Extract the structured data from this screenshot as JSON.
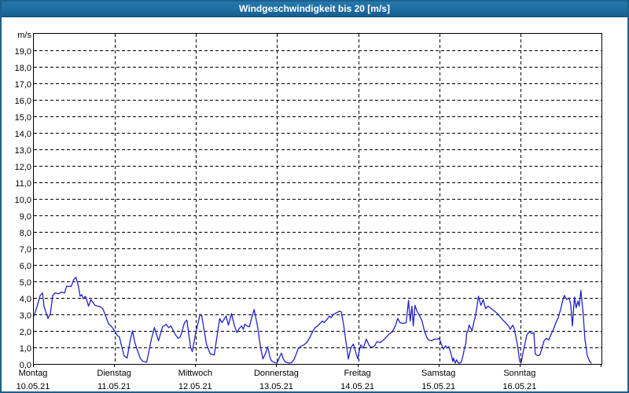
{
  "window": {
    "title": "Windgeschwindigkeit bis 20 [m/s]"
  },
  "colors": {
    "titlebar_blue": "#1e6da1",
    "outer_border_blue": "#1d5f8f",
    "line_blue": "#2222c8",
    "grid_black": "#000000",
    "background": "#ffffff",
    "title_text": "#ffffff",
    "label_text": "#000000"
  },
  "chart_data": {
    "type": "line",
    "title": "Windgeschwindigkeit bis 20 [m/s]",
    "ylabel_unit": "m/s",
    "ylim": [
      0,
      20
    ],
    "ytick_step": 1.0,
    "ytick_labels_top_to_bottom": [
      "19,0",
      "18,0",
      "17,0",
      "16,0",
      "15,0",
      "14,0",
      "13,0",
      "12,0",
      "11,0",
      "10,0",
      "9,0",
      "8,0",
      "7,0",
      "6,0",
      "5,0",
      "4,0",
      "3,0",
      "2,0",
      "1,0",
      "0,0"
    ],
    "xlim_hours": [
      0,
      168
    ],
    "grid": "dashed-black, 1 m/s horizontal steps, vertical lines at day boundaries",
    "legend": "none",
    "days": [
      {
        "name": "Montag",
        "date": "10.05.21"
      },
      {
        "name": "Dienstag",
        "date": "11.05.21"
      },
      {
        "name": "Mittwoch",
        "date": "12.05.21"
      },
      {
        "name": "Donnerstag",
        "date": "13.05.21"
      },
      {
        "name": "Freitag",
        "date": "14.05.21"
      },
      {
        "name": "Samstag",
        "date": "15.05.21"
      },
      {
        "name": "Sonntag",
        "date": "16.05.21"
      }
    ],
    "series": [
      {
        "name": "Windgeschwindigkeit",
        "unit": "m/s",
        "color": "#2222c8",
        "points_hours_value": [
          [
            0,
            2.9
          ],
          [
            0.7,
            3.3
          ],
          [
            1.9,
            4.15
          ],
          [
            2.6,
            4.3
          ],
          [
            3,
            3.5
          ],
          [
            3.7,
            3.05
          ],
          [
            4.2,
            2.75
          ],
          [
            4.9,
            3.05
          ],
          [
            5.6,
            4.15
          ],
          [
            6.3,
            4.3
          ],
          [
            7.4,
            4.25
          ],
          [
            8.1,
            4.35
          ],
          [
            9.1,
            4.3
          ],
          [
            9.7,
            4.7
          ],
          [
            11.1,
            4.7
          ],
          [
            11.8,
            5.1
          ],
          [
            12.5,
            5.25
          ],
          [
            13.2,
            4.7
          ],
          [
            13.7,
            4.1
          ],
          [
            14.2,
            4.2
          ],
          [
            14.6,
            3.95
          ],
          [
            15.3,
            4.1
          ],
          [
            16.2,
            3.5
          ],
          [
            16.9,
            3.9
          ],
          [
            18.1,
            3.55
          ],
          [
            19,
            3.5
          ],
          [
            19.7,
            3.45
          ],
          [
            20.4,
            3.35
          ],
          [
            21.1,
            3
          ],
          [
            21.8,
            2.6
          ],
          [
            22.2,
            2.4
          ],
          [
            22.9,
            2.3
          ],
          [
            23.9,
            2
          ],
          [
            24.8,
            1.7
          ],
          [
            25.3,
            1.65
          ],
          [
            26.7,
            0.5
          ],
          [
            27.6,
            0.35
          ],
          [
            28.5,
            1.4
          ],
          [
            29.2,
            2
          ],
          [
            29.9,
            1.3
          ],
          [
            30.6,
            0.85
          ],
          [
            31.6,
            0.3
          ],
          [
            32.3,
            0.15
          ],
          [
            33.4,
            0.1
          ],
          [
            34.8,
            1.5
          ],
          [
            35.7,
            2.2
          ],
          [
            36.9,
            1.4
          ],
          [
            38.1,
            2.25
          ],
          [
            39.2,
            2.4
          ],
          [
            39.9,
            2.2
          ],
          [
            40.6,
            2.3
          ],
          [
            41.8,
            1.8
          ],
          [
            42.7,
            1.55
          ],
          [
            43.4,
            1.65
          ],
          [
            44.6,
            2.5
          ],
          [
            45.3,
            2.65
          ],
          [
            46.4,
            1
          ],
          [
            46.9,
            0.75
          ],
          [
            48,
            1.95
          ],
          [
            49.2,
            3
          ],
          [
            49.7,
            2.9
          ],
          [
            51.1,
            1.2
          ],
          [
            52.2,
            0.6
          ],
          [
            53.4,
            0.55
          ],
          [
            54.1,
            1.5
          ],
          [
            55,
            2.75
          ],
          [
            55.7,
            2.5
          ],
          [
            56.9,
            2.9
          ],
          [
            57.6,
            2.35
          ],
          [
            58.5,
            3.05
          ],
          [
            59.4,
            2.3
          ],
          [
            60.1,
            1.9
          ],
          [
            60.8,
            2.15
          ],
          [
            61.5,
            2.3
          ],
          [
            62,
            2.1
          ],
          [
            62.4,
            2.4
          ],
          [
            63.1,
            2.3
          ],
          [
            63.8,
            2.25
          ],
          [
            64.5,
            2.8
          ],
          [
            65.2,
            3.3
          ],
          [
            66.2,
            2.3
          ],
          [
            67.1,
            1
          ],
          [
            67.8,
            0.3
          ],
          [
            68.5,
            0.6
          ],
          [
            69.2,
            1.05
          ],
          [
            69.9,
            0.4
          ],
          [
            70.3,
            0.2
          ],
          [
            71,
            0.1
          ],
          [
            72,
            0.05
          ],
          [
            72.9,
            0.5
          ],
          [
            73.3,
            0.65
          ],
          [
            73.8,
            0.3
          ],
          [
            74.5,
            0.1
          ],
          [
            75.7,
            0.05
          ],
          [
            76.4,
            0.1
          ],
          [
            77.1,
            0.3
          ],
          [
            78.2,
            0.9
          ],
          [
            78.9,
            1.05
          ],
          [
            79.9,
            1.15
          ],
          [
            80.8,
            1.3
          ],
          [
            81.7,
            1.6
          ],
          [
            82.6,
            2
          ],
          [
            83.3,
            2.2
          ],
          [
            84,
            2.3
          ],
          [
            84.7,
            2.45
          ],
          [
            85.4,
            2.6
          ],
          [
            85.9,
            2.5
          ],
          [
            86.8,
            2.7
          ],
          [
            87.5,
            2.9
          ],
          [
            88,
            2.8
          ],
          [
            88.7,
            3
          ],
          [
            89.6,
            3.1
          ],
          [
            90.5,
            3.2
          ],
          [
            91,
            3.15
          ],
          [
            91.7,
            2.35
          ],
          [
            92.4,
            1.3
          ],
          [
            93.1,
            0.3
          ],
          [
            93.8,
            0.95
          ],
          [
            94.5,
            1.2
          ],
          [
            94.9,
            1
          ],
          [
            95.4,
            0.6
          ],
          [
            95.9,
            0.3
          ],
          [
            96.4,
            0.9
          ],
          [
            96.8,
            1.15
          ],
          [
            97.5,
            0.95
          ],
          [
            98.4,
            1.5
          ],
          [
            99.3,
            1.1
          ],
          [
            100,
            1
          ],
          [
            100.7,
            1.05
          ],
          [
            101.6,
            1.35
          ],
          [
            102.6,
            1.3
          ],
          [
            104,
            1.55
          ],
          [
            105.1,
            1.8
          ],
          [
            106.1,
            1.95
          ],
          [
            107,
            2.3
          ],
          [
            107.7,
            2.75
          ],
          [
            108.4,
            2.5
          ],
          [
            109.3,
            2.45
          ],
          [
            110.2,
            2.5
          ],
          [
            110.9,
            3.85
          ],
          [
            111.4,
            2.6
          ],
          [
            111.9,
            3.5
          ],
          [
            112.3,
            2.3
          ],
          [
            112.8,
            3.55
          ],
          [
            113.5,
            3.15
          ],
          [
            114.2,
            2.9
          ],
          [
            114.9,
            2.6
          ],
          [
            115.6,
            2
          ],
          [
            116.3,
            1.6
          ],
          [
            116.8,
            1.45
          ],
          [
            117.7,
            1.4
          ],
          [
            118.6,
            1.5
          ],
          [
            119.3,
            1.5
          ],
          [
            120,
            1.55
          ],
          [
            120.7,
            1.15
          ],
          [
            121.2,
            0.9
          ],
          [
            121.9,
            1.1
          ],
          [
            122.3,
            0.95
          ],
          [
            122.8,
            1.05
          ],
          [
            123.5,
            0.6
          ],
          [
            124,
            0.15
          ],
          [
            124.2,
            0.35
          ],
          [
            124.7,
            0.05
          ],
          [
            125.1,
            0.25
          ],
          [
            125.6,
            0.05
          ],
          [
            126,
            0.05
          ],
          [
            126.5,
            0.1
          ],
          [
            127,
            0.5
          ],
          [
            127.4,
            0.9
          ],
          [
            127.9,
            1.3
          ],
          [
            128.1,
            1.85
          ],
          [
            128.6,
            2.1
          ],
          [
            128.8,
            2.35
          ],
          [
            129.5,
            2.1
          ],
          [
            129.7,
            2
          ],
          [
            130.2,
            2.5
          ],
          [
            130.7,
            2.9
          ],
          [
            131.1,
            3.4
          ],
          [
            131.6,
            4.1
          ],
          [
            132.3,
            3.55
          ],
          [
            133,
            3.9
          ],
          [
            133.7,
            3.35
          ],
          [
            134.4,
            3.5
          ],
          [
            135.1,
            3.4
          ],
          [
            136.3,
            3.2
          ],
          [
            137.5,
            3
          ],
          [
            138.2,
            2.8
          ],
          [
            139.1,
            2.6
          ],
          [
            139.8,
            2.45
          ],
          [
            140.5,
            2.3
          ],
          [
            141,
            2.1
          ],
          [
            141.7,
            2.35
          ],
          [
            142.1,
            2.2
          ],
          [
            143.1,
            1.2
          ],
          [
            143.8,
            0.15
          ],
          [
            144.2,
            0.05
          ],
          [
            144.9,
            0.8
          ],
          [
            145.9,
            1.75
          ],
          [
            146.6,
            1.95
          ],
          [
            147.3,
            1.85
          ],
          [
            148,
            1.9
          ],
          [
            148.4,
            0.6
          ],
          [
            149.1,
            0.5
          ],
          [
            149.8,
            0.55
          ],
          [
            151,
            1.4
          ],
          [
            151.7,
            1.55
          ],
          [
            152.4,
            1.45
          ],
          [
            153.1,
            1.8
          ],
          [
            153.8,
            2.1
          ],
          [
            154.5,
            2.5
          ],
          [
            155.2,
            2.8
          ],
          [
            155.9,
            3.3
          ],
          [
            156.6,
            3.9
          ],
          [
            157,
            4.15
          ],
          [
            157.7,
            3.9
          ],
          [
            158.4,
            4
          ],
          [
            158.9,
            3.6
          ],
          [
            159.4,
            2.3
          ],
          [
            160,
            4.05
          ],
          [
            160.5,
            3.4
          ],
          [
            161,
            3.8
          ],
          [
            161.4,
            3.5
          ],
          [
            161.9,
            4.45
          ],
          [
            162.6,
            3
          ],
          [
            163.1,
            1.5
          ],
          [
            163.8,
            0.5
          ],
          [
            164.5,
            0.15
          ],
          [
            165,
            0.05
          ]
        ]
      }
    ]
  }
}
